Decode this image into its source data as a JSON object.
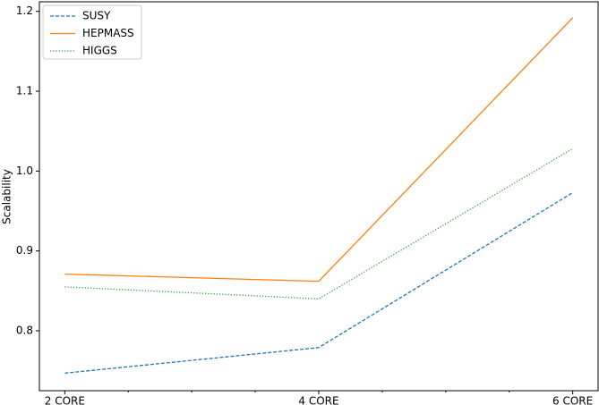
{
  "chart_data": {
    "type": "line",
    "ylabel": "Scalability",
    "categories": [
      "2 CORE",
      "4 CORE",
      "6 CORE"
    ],
    "series": [
      {
        "name": "SUSY",
        "color": "#1f77b4",
        "linestyle": "dashed",
        "values": [
          0.747,
          0.779,
          0.973
        ]
      },
      {
        "name": "HEPMASS",
        "color": "#ff7f0e",
        "linestyle": "solid",
        "values": [
          0.871,
          0.862,
          1.192
        ]
      },
      {
        "name": "HIGGS",
        "color": "#2ca02c",
        "linestyle": "dotted",
        "values": [
          0.855,
          0.84,
          1.028
        ]
      }
    ],
    "ylim": [
      0.725,
      1.212
    ],
    "yticks": [
      0.8,
      0.9,
      {
        "value": 1,
        "label": "1.0"
      },
      1.1,
      1.2
    ],
    "grid": false,
    "legend": "upper left"
  }
}
